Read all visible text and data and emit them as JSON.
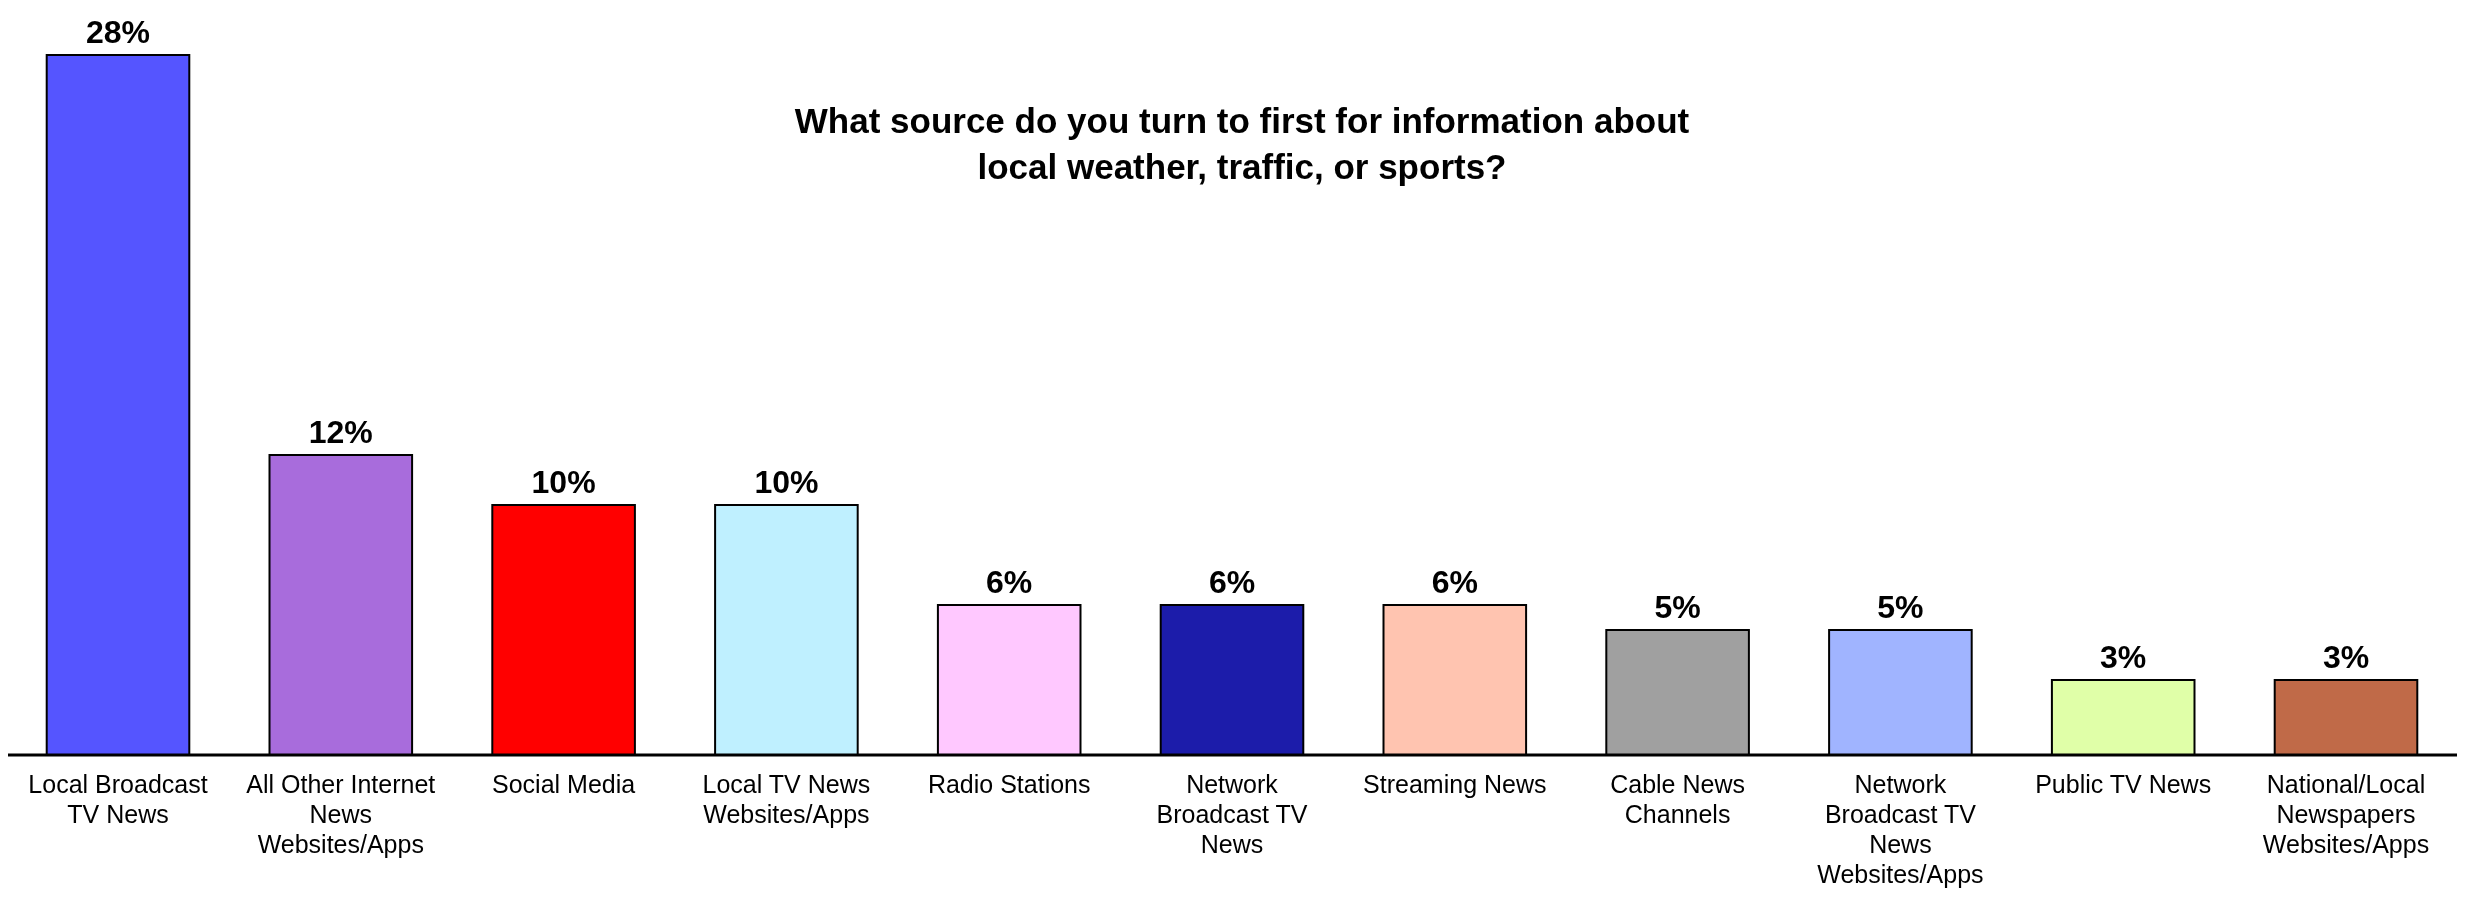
{
  "chart_data": {
    "type": "bar",
    "title": "What source do you turn to first for information about local weather, traffic, or sports?",
    "categories": [
      "Local Broadcast TV News",
      "All Other Internet News Websites/Apps",
      "Social Media",
      "Local TV News Websites/Apps",
      "Radio Stations",
      "Network Broadcast TV News",
      "Streaming News",
      "Cable News Channels",
      "Network Broadcast TV News Websites/Apps",
      "Public TV News",
      "National/Local Newspapers Websites/Apps"
    ],
    "values": [
      28,
      12,
      10,
      10,
      6,
      6,
      6,
      5,
      5,
      3,
      3
    ],
    "value_labels": [
      "28%",
      "12%",
      "10%",
      "10%",
      "6%",
      "6%",
      "6%",
      "5%",
      "5%",
      "3%",
      "3%"
    ],
    "colors": [
      "#5555ff",
      "#a86cdc",
      "#ff0000",
      "#bff0ff",
      "#ffc8ff",
      "#1c1caa",
      "#ffc4b0",
      "#a0a0a0",
      "#a0b4ff",
      "#e0ffa8",
      "#c06a48"
    ]
  }
}
